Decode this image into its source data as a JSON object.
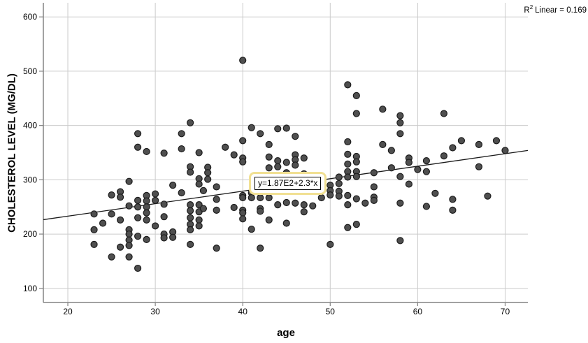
{
  "chart_data": {
    "type": "scatter",
    "title": "",
    "xlabel": "age",
    "ylabel": "CHOLESTEROL LEVEL (MG/DL)",
    "x_ticks": [
      20,
      30,
      40,
      50,
      60,
      70
    ],
    "y_ticks": [
      100,
      200,
      300,
      400,
      500,
      600
    ],
    "xlim": [
      17.2,
      72.6
    ],
    "ylim": [
      74,
      626
    ],
    "grid": true,
    "legend": "none",
    "regression": {
      "intercept": 187,
      "slope": 2.3,
      "equation_label": "y=1.87E2+2.3*x"
    },
    "r_squared": {
      "base": "R",
      "sup": "2",
      "rest": "Linear = 0.169",
      "full_text": "R2 Linear = 0.169",
      "value": 0.169
    },
    "points": [
      [
        23,
        237
      ],
      [
        23,
        208
      ],
      [
        23,
        181
      ],
      [
        24,
        220
      ],
      [
        25,
        272
      ],
      [
        25,
        237
      ],
      [
        25,
        158
      ],
      [
        26,
        278
      ],
      [
        26,
        268
      ],
      [
        26,
        226
      ],
      [
        26,
        176
      ],
      [
        27,
        297
      ],
      [
        27,
        252
      ],
      [
        27,
        208
      ],
      [
        27,
        200
      ],
      [
        27,
        189
      ],
      [
        27,
        179
      ],
      [
        27,
        158
      ],
      [
        28,
        385
      ],
      [
        28,
        360
      ],
      [
        28,
        262
      ],
      [
        28,
        250
      ],
      [
        28,
        230
      ],
      [
        28,
        196
      ],
      [
        28,
        137
      ],
      [
        29,
        352
      ],
      [
        29,
        271
      ],
      [
        29,
        261
      ],
      [
        29,
        250
      ],
      [
        29,
        239
      ],
      [
        29,
        226
      ],
      [
        29,
        190
      ],
      [
        30,
        274
      ],
      [
        30,
        262
      ],
      [
        30,
        215
      ],
      [
        31,
        349
      ],
      [
        31,
        255
      ],
      [
        31,
        232
      ],
      [
        31,
        200
      ],
      [
        31,
        193
      ],
      [
        32,
        290
      ],
      [
        32,
        204
      ],
      [
        32,
        194
      ],
      [
        33,
        385
      ],
      [
        33,
        357
      ],
      [
        33,
        276
      ],
      [
        34,
        405
      ],
      [
        34,
        324
      ],
      [
        34,
        314
      ],
      [
        34,
        254
      ],
      [
        34,
        243
      ],
      [
        34,
        230
      ],
      [
        34,
        218
      ],
      [
        34,
        208
      ],
      [
        34,
        181
      ],
      [
        35,
        350
      ],
      [
        35,
        302
      ],
      [
        35,
        292
      ],
      [
        35,
        254
      ],
      [
        35,
        241
      ],
      [
        35,
        226
      ],
      [
        35,
        215
      ],
      [
        35.5,
        280
      ],
      [
        35.5,
        247
      ],
      [
        36,
        323
      ],
      [
        36,
        313
      ],
      [
        36,
        301
      ],
      [
        37,
        287
      ],
      [
        37,
        264
      ],
      [
        37,
        244
      ],
      [
        37,
        174
      ],
      [
        38,
        360
      ],
      [
        39,
        346
      ],
      [
        39,
        249
      ],
      [
        40,
        520
      ],
      [
        40,
        372
      ],
      [
        40,
        340
      ],
      [
        40,
        333
      ],
      [
        40,
        271
      ],
      [
        40,
        267
      ],
      [
        40,
        244
      ],
      [
        40,
        239
      ],
      [
        40,
        228
      ],
      [
        41,
        396
      ],
      [
        41,
        276
      ],
      [
        41,
        267
      ],
      [
        41,
        209
      ],
      [
        42,
        385
      ],
      [
        42,
        267
      ],
      [
        42,
        247
      ],
      [
        42,
        242
      ],
      [
        42,
        174
      ],
      [
        43,
        365
      ],
      [
        43,
        342
      ],
      [
        43,
        322
      ],
      [
        43,
        267
      ],
      [
        43,
        226
      ],
      [
        44,
        394
      ],
      [
        44,
        335
      ],
      [
        44,
        324
      ],
      [
        44,
        254
      ],
      [
        45,
        395
      ],
      [
        45,
        332
      ],
      [
        45,
        313
      ],
      [
        45,
        258
      ],
      [
        45,
        220
      ],
      [
        46,
        380
      ],
      [
        46,
        346
      ],
      [
        46,
        337
      ],
      [
        46,
        327
      ],
      [
        46,
        257
      ],
      [
        47,
        340
      ],
      [
        47,
        311
      ],
      [
        47,
        254
      ],
      [
        47,
        241
      ],
      [
        48,
        252
      ],
      [
        49,
        267
      ],
      [
        50,
        290
      ],
      [
        50,
        280
      ],
      [
        50,
        272
      ],
      [
        50,
        181
      ],
      [
        51,
        305
      ],
      [
        51,
        293
      ],
      [
        51,
        279
      ],
      [
        51,
        270
      ],
      [
        52,
        475
      ],
      [
        52,
        370
      ],
      [
        52,
        347
      ],
      [
        52,
        329
      ],
      [
        52,
        315
      ],
      [
        52,
        305
      ],
      [
        52,
        271
      ],
      [
        52,
        254
      ],
      [
        52,
        212
      ],
      [
        53,
        455
      ],
      [
        53,
        422
      ],
      [
        53,
        343
      ],
      [
        53,
        333
      ],
      [
        53,
        315
      ],
      [
        53,
        306
      ],
      [
        53,
        265
      ],
      [
        53,
        218
      ],
      [
        54,
        257
      ],
      [
        55,
        313
      ],
      [
        55,
        287
      ],
      [
        55,
        268
      ],
      [
        55,
        262
      ],
      [
        56,
        430
      ],
      [
        56,
        365
      ],
      [
        57,
        354
      ],
      [
        57,
        322
      ],
      [
        58,
        418
      ],
      [
        58,
        405
      ],
      [
        58,
        385
      ],
      [
        58,
        306
      ],
      [
        58,
        257
      ],
      [
        58,
        188
      ],
      [
        59,
        340
      ],
      [
        59,
        332
      ],
      [
        59,
        292
      ],
      [
        60,
        319
      ],
      [
        61,
        335
      ],
      [
        61,
        315
      ],
      [
        61,
        251
      ],
      [
        62,
        275
      ],
      [
        63,
        422
      ],
      [
        63,
        344
      ],
      [
        64,
        359
      ],
      [
        64,
        264
      ],
      [
        64,
        244
      ],
      [
        65,
        372
      ],
      [
        67,
        365
      ],
      [
        67,
        324
      ],
      [
        68,
        270
      ],
      [
        69,
        372
      ],
      [
        70,
        354
      ]
    ]
  },
  "colors": {
    "background": "#ffffff",
    "gridline": "#cbcbcb",
    "axis": "#848484",
    "point_fill": "#4f4f4f",
    "point_stroke": "#1c1c1c",
    "regression_line": "#1a1a1a",
    "label_highlight": "#f1e093",
    "text": "#000000"
  }
}
